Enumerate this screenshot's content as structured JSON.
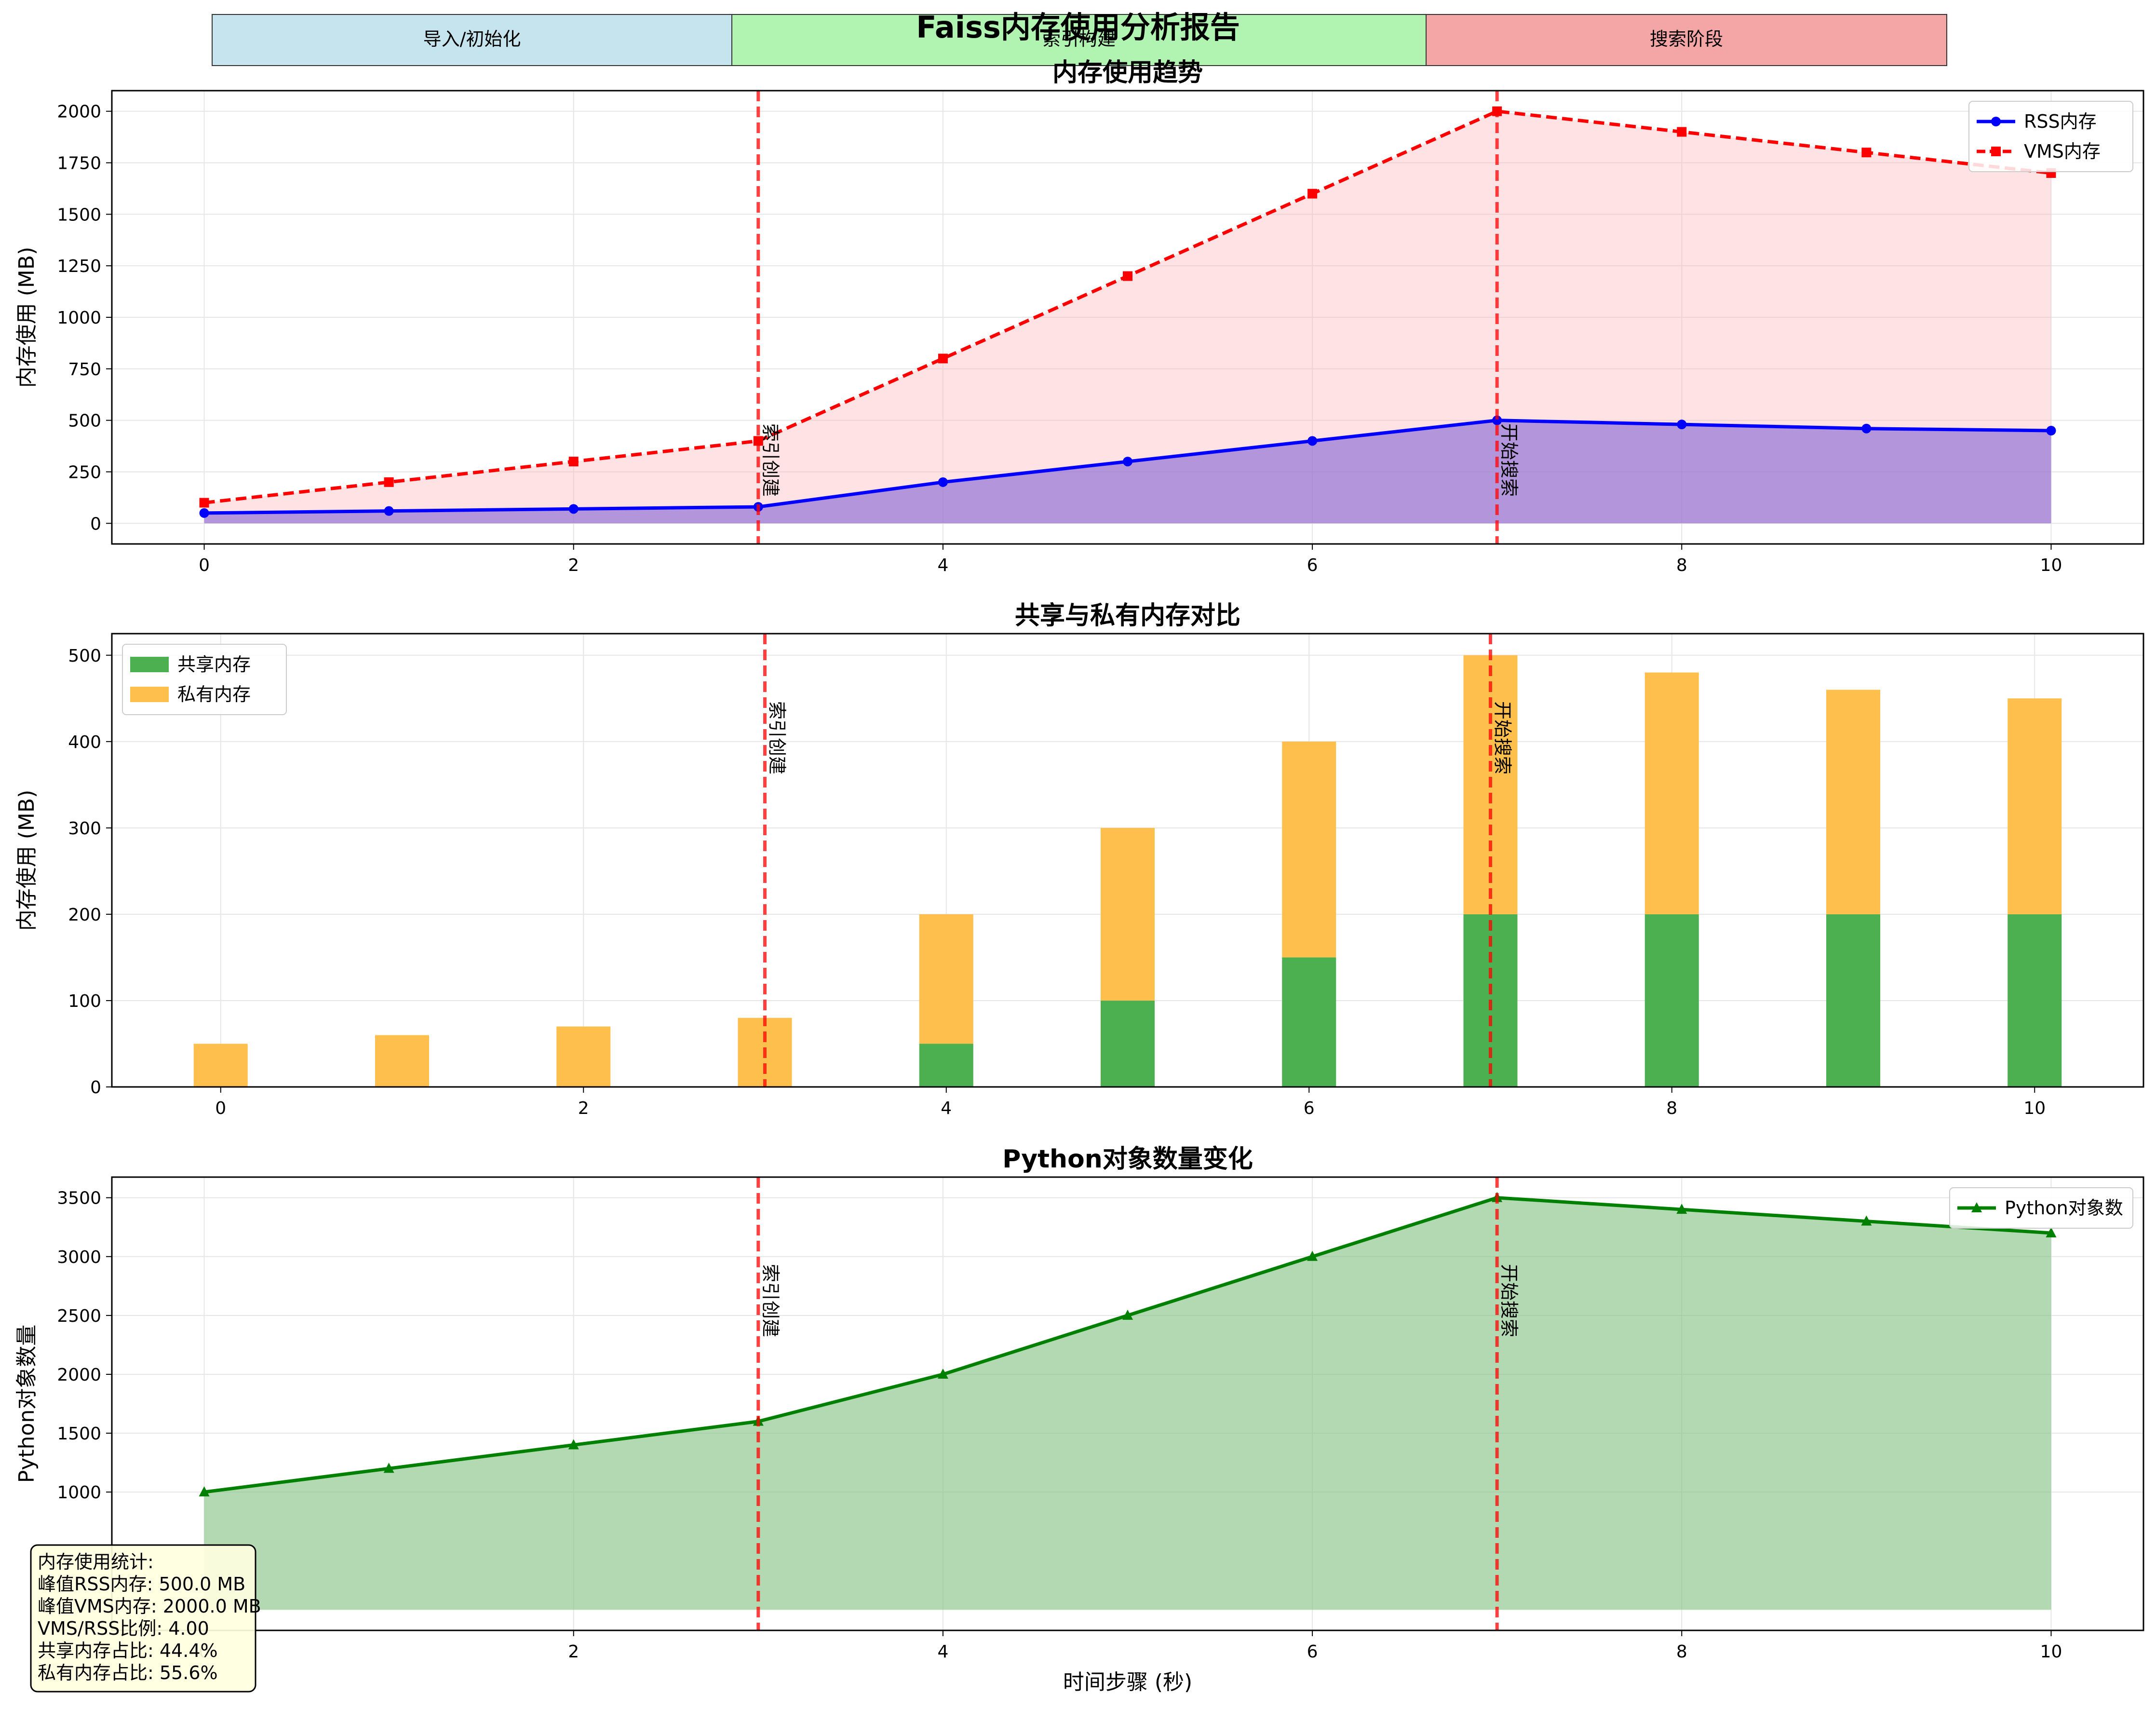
{
  "figure": {
    "title": "Faiss内存使用分析报告",
    "phases": [
      {
        "label": "导入/初始化",
        "color": "#add8e6"
      },
      {
        "label": "索引构建",
        "color": "#90ee90"
      },
      {
        "label": "搜索阶段",
        "color": "#f08080"
      }
    ],
    "xlabel": "时间步骤 (秒)",
    "events": [
      {
        "x": 3,
        "label": "索引创建"
      },
      {
        "x": 7,
        "label": "开始搜索"
      }
    ],
    "stats": {
      "title": "内存使用统计:",
      "lines": [
        "峰值RSS内存: 500.0 MB",
        "峰值VMS内存: 2000.0 MB",
        "VMS/RSS比例: 4.00",
        "共享内存占比: 44.4%",
        "私有内存占比: 55.6%"
      ]
    },
    "colors": {
      "rss": "#0000ff",
      "vms": "#ff0000",
      "shared": "#4caf50",
      "private": "#ffbf4d",
      "python": "#008000",
      "event": "#ff0000"
    }
  },
  "chart_data": [
    {
      "type": "line",
      "title": "内存使用趋势",
      "xlabel": "",
      "ylabel": "内存使用 (MB)",
      "x": [
        0,
        1,
        2,
        3,
        4,
        5,
        6,
        7,
        8,
        9,
        10
      ],
      "series": [
        {
          "name": "RSS内存",
          "values": [
            50,
            60,
            70,
            80,
            200,
            300,
            400,
            500,
            480,
            460,
            450
          ]
        },
        {
          "name": "VMS内存",
          "values": [
            100,
            200,
            300,
            400,
            800,
            1200,
            1600,
            2000,
            1900,
            1800,
            1700
          ]
        }
      ],
      "xlim": [
        -0.5,
        10.5
      ],
      "ylim": [
        -100,
        2100
      ],
      "xticks": [
        0,
        2,
        4,
        6,
        8,
        10
      ],
      "yticks": [
        0,
        250,
        500,
        750,
        1000,
        1250,
        1500,
        1750,
        2000
      ],
      "grid": true,
      "legend": "top-right"
    },
    {
      "type": "bar",
      "title": "共享与私有内存对比",
      "xlabel": "",
      "ylabel": "内存使用 (MB)",
      "x": [
        0,
        1,
        2,
        3,
        4,
        5,
        6,
        7,
        8,
        9,
        10
      ],
      "series": [
        {
          "name": "共享内存",
          "values": [
            0,
            0,
            0,
            0,
            50,
            100,
            150,
            200,
            200,
            200,
            200
          ]
        },
        {
          "name": "私有内存",
          "values": [
            50,
            60,
            70,
            80,
            150,
            200,
            250,
            300,
            280,
            260,
            250
          ]
        }
      ],
      "xlim": [
        -0.6,
        10.6
      ],
      "ylim": [
        0,
        525
      ],
      "xticks": [
        0,
        2,
        4,
        6,
        8,
        10
      ],
      "yticks": [
        0,
        100,
        200,
        300,
        400,
        500
      ],
      "grid": true,
      "legend": "top-left"
    },
    {
      "type": "area",
      "title": "Python对象数量变化",
      "xlabel": "时间步骤 (秒)",
      "ylabel": "Python对象数量",
      "x": [
        0,
        1,
        2,
        3,
        4,
        5,
        6,
        7,
        8,
        9,
        10
      ],
      "series": [
        {
          "name": "Python对象数",
          "values": [
            1000,
            1200,
            1400,
            1600,
            2000,
            2500,
            3000,
            3500,
            3400,
            3300,
            3200
          ]
        }
      ],
      "xlim": [
        -0.5,
        10.5
      ],
      "ylim": [
        -175,
        3675
      ],
      "xticks": [
        0,
        2,
        4,
        6,
        8,
        10
      ],
      "yticks": [
        1000,
        1500,
        2000,
        2500,
        3000,
        3500
      ],
      "grid": true,
      "legend": "top-right"
    }
  ]
}
